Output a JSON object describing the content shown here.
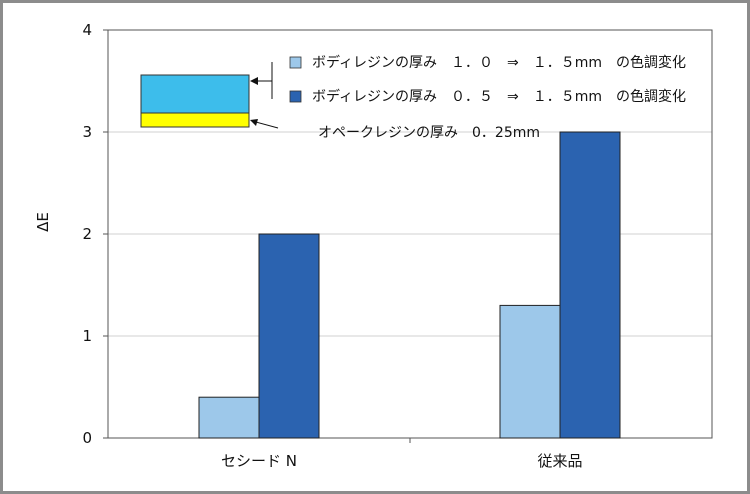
{
  "chart_data": {
    "type": "bar",
    "categories": [
      "セシード N",
      "従来品"
    ],
    "series": [
      {
        "name": "ボディレジンの厚み　１．０　⇒　１．５mm　の色調変化",
        "values": [
          0.4,
          1.3
        ],
        "color": "#9dc8ea"
      },
      {
        "name": "ボディレジンの厚み　０．５　⇒　１．５mm　の色調変化",
        "values": [
          2.0,
          3.0
        ],
        "color": "#2b63b0"
      }
    ],
    "ylabel": "ΔE",
    "ylim": [
      0,
      4
    ],
    "yticks": [
      "0",
      "1",
      "2",
      "3",
      "4"
    ],
    "grid": true,
    "legend_position": "top-right",
    "annotation": "オペークレジンの厚み　0．25mm",
    "layer_colors": {
      "body": "#3dbdeb",
      "opaque": "#ffff00"
    }
  }
}
